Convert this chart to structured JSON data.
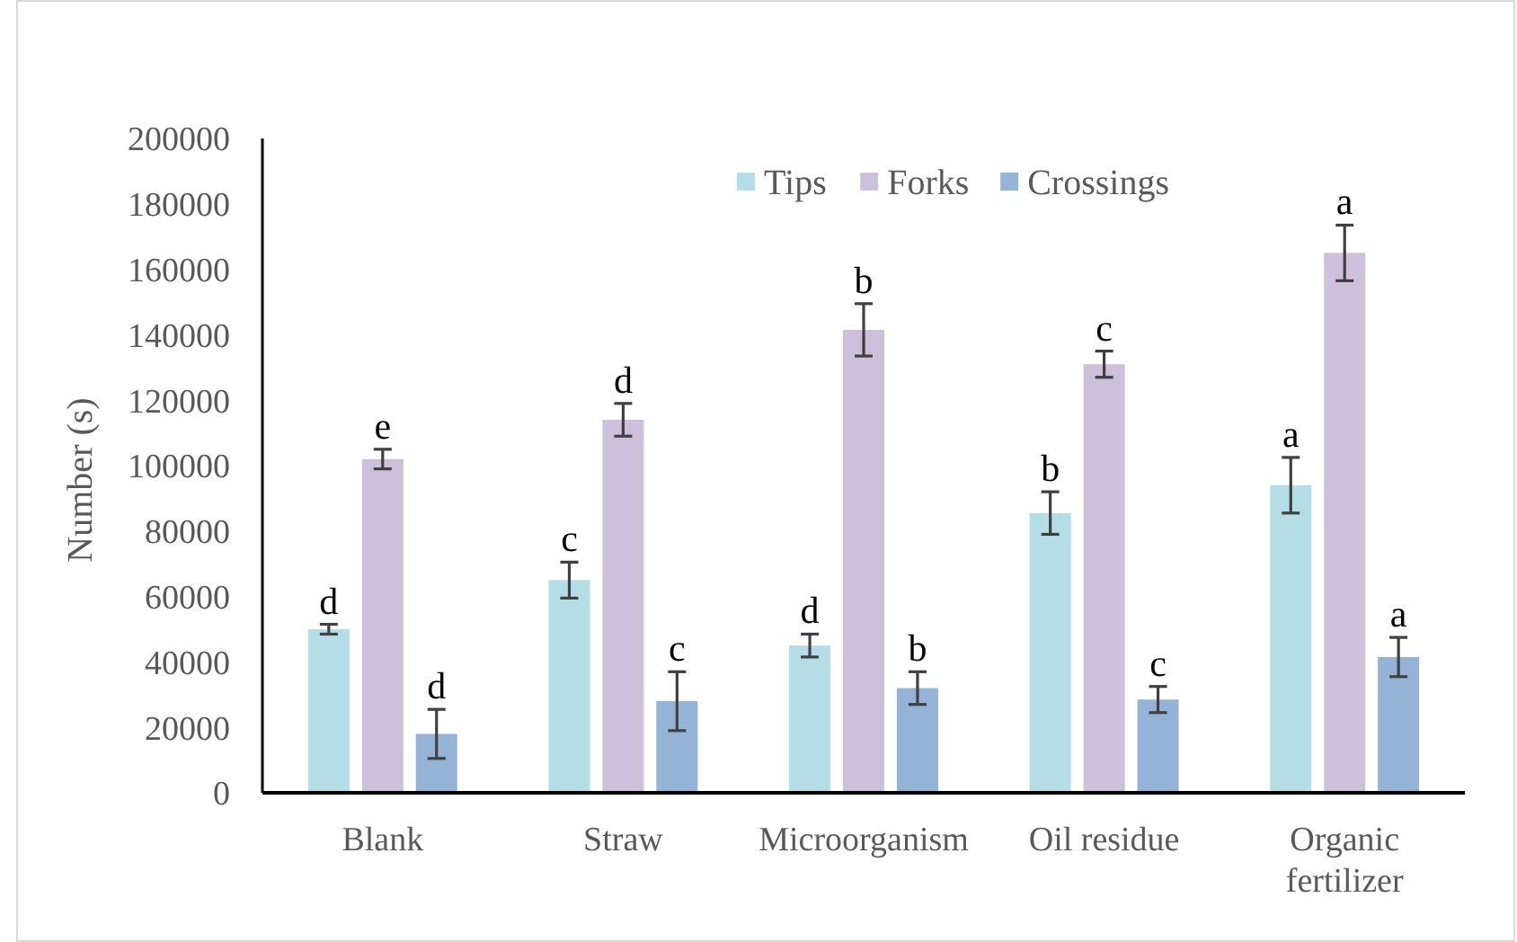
{
  "chart_data": {
    "type": "bar",
    "ylabel": "Number (s)",
    "categories": [
      "Blank",
      "Straw",
      "Microorganism",
      "Oil residue",
      "Organic fertilizer"
    ],
    "series": [
      {
        "name": "Tips",
        "color": "#b4dde6",
        "values": [
          50000,
          65000,
          45000,
          85500,
          94000
        ],
        "errors": [
          1500,
          5500,
          3500,
          6500,
          8500
        ],
        "value_labels": [
          "d",
          "c",
          "d",
          "b",
          "a"
        ]
      },
      {
        "name": "Forks",
        "color": "#ccc0da",
        "values": [
          102000,
          114000,
          141500,
          131000,
          165000
        ],
        "errors": [
          3000,
          5000,
          8000,
          4000,
          8500
        ],
        "value_labels": [
          "e",
          "d",
          "b",
          "c",
          "a"
        ]
      },
      {
        "name": "Crossings",
        "color": "#95b3d7",
        "values": [
          18000,
          28000,
          32000,
          28500,
          41500
        ],
        "errors": [
          7500,
          9000,
          5000,
          4000,
          6000
        ],
        "value_labels": [
          "d",
          "c",
          "b",
          "c",
          "a"
        ]
      }
    ],
    "ylim": [
      0,
      200000
    ],
    "yticks": [
      0,
      20000,
      40000,
      60000,
      80000,
      100000,
      120000,
      140000,
      160000,
      180000,
      200000
    ],
    "grid": false,
    "legend": "top"
  }
}
